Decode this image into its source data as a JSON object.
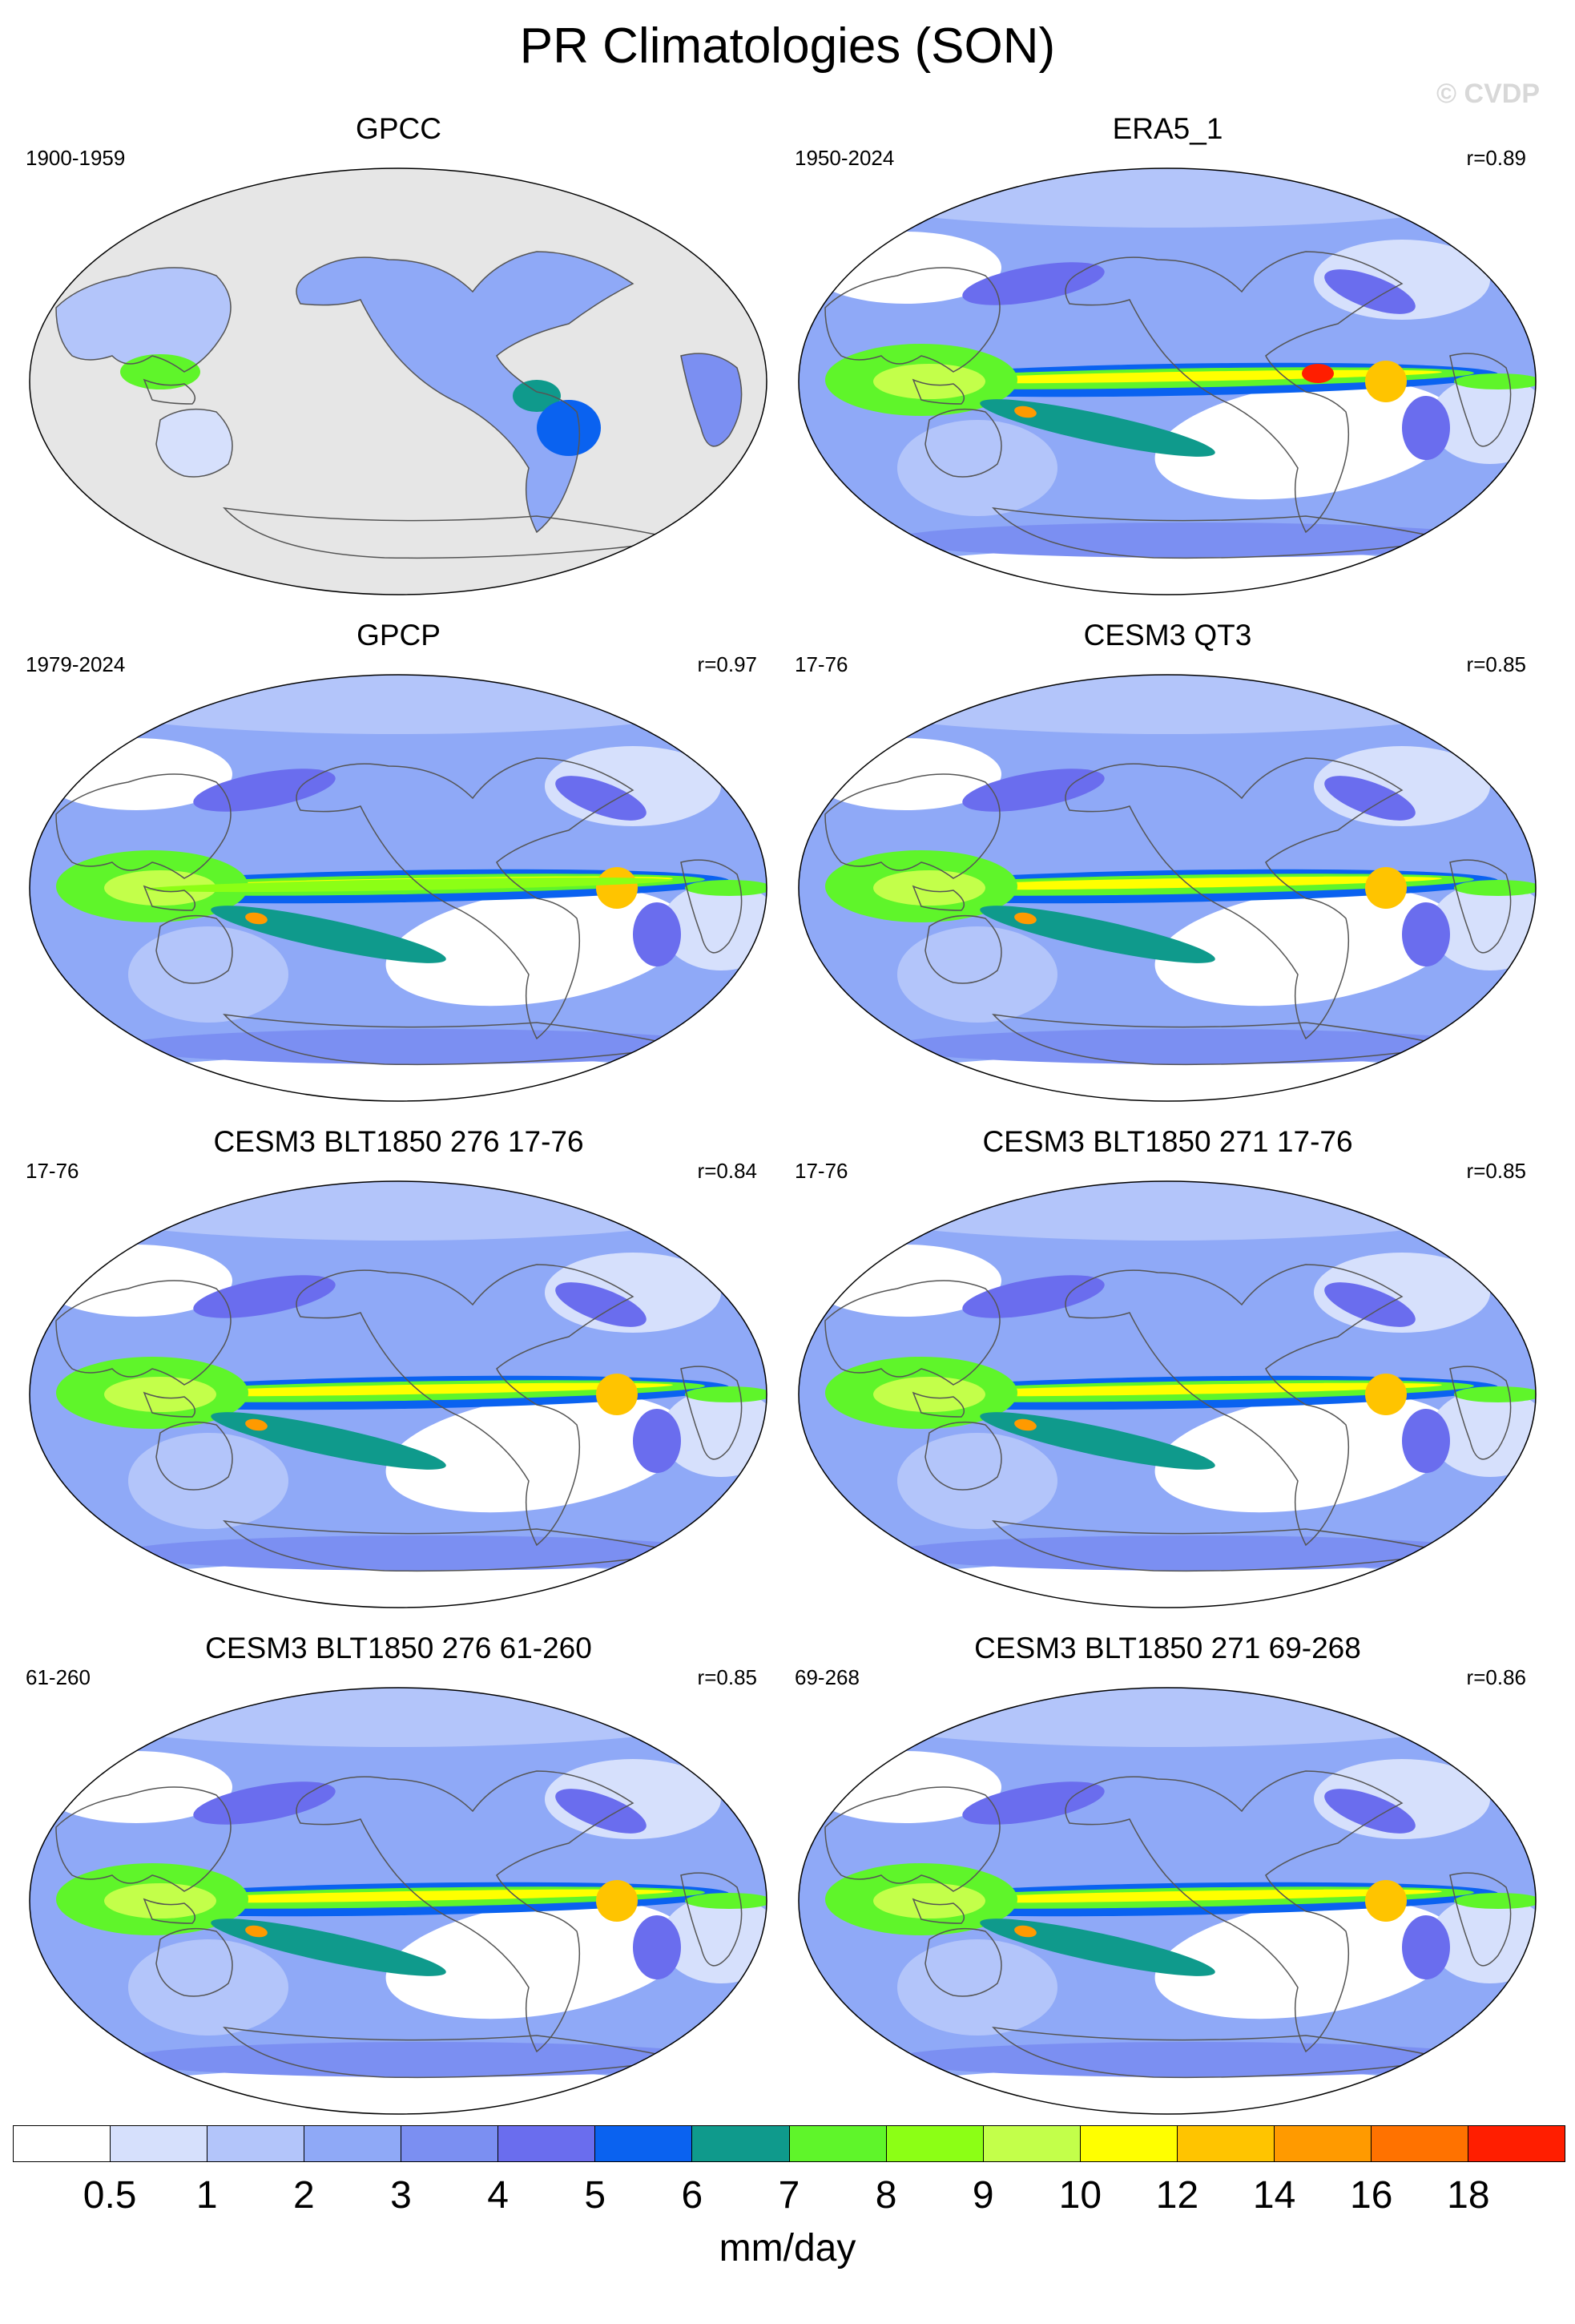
{
  "figure": {
    "title": "PR Climatologies (SON)",
    "watermark": "© CVDP",
    "units": "mm/day"
  },
  "colors": {
    "land_missing": "#e6e6e6",
    "coast": "#555555",
    "levels": [
      "#ffffff",
      "#d6e0fc",
      "#b3c5fa",
      "#8fa9f7",
      "#7b8ff2",
      "#6a6dee",
      "#0a62f0",
      "#0f9a8c",
      "#5ff52a",
      "#8cff15",
      "#c3ff4a",
      "#ffff00",
      "#ffc400",
      "#ff9a00",
      "#ff7200",
      "#ff1e00"
    ]
  },
  "colorbar": {
    "labels": [
      "0.5",
      "1",
      "2",
      "3",
      "4",
      "5",
      "6",
      "7",
      "8",
      "9",
      "10",
      "12",
      "14",
      "16",
      "18"
    ]
  },
  "panels": [
    {
      "title": "GPCC",
      "period": "1900-1959",
      "corr": "",
      "style": "gpcc"
    },
    {
      "title": "ERA5_1",
      "period": "1950-2024",
      "corr": "r=0.89",
      "style": "era5"
    },
    {
      "title": "GPCP",
      "period": "1979-2024",
      "corr": "r=0.97",
      "style": "gpcp"
    },
    {
      "title": "CESM3 QT3",
      "period": "17-76",
      "corr": "r=0.85",
      "style": "model"
    },
    {
      "title": "CESM3 BLT1850 276 17-76",
      "period": "17-76",
      "corr": "r=0.84",
      "style": "model"
    },
    {
      "title": "CESM3 BLT1850 271 17-76",
      "period": "17-76",
      "corr": "r=0.85",
      "style": "model"
    },
    {
      "title": "CESM3 BLT1850 276 61-260",
      "period": "61-260",
      "corr": "r=0.85",
      "style": "model"
    },
    {
      "title": "CESM3 BLT1850 271 69-268",
      "period": "69-268",
      "corr": "r=0.86",
      "style": "model"
    }
  ]
}
